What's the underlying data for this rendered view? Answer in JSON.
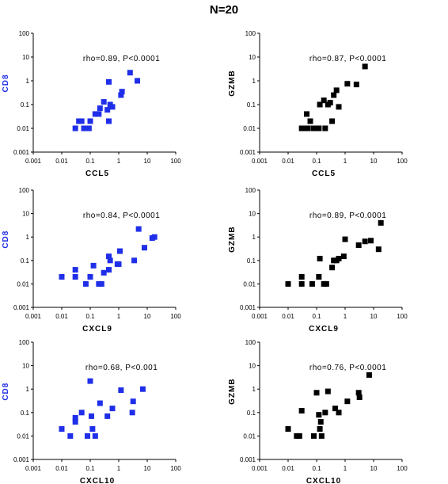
{
  "figure": {
    "title": "N=20"
  },
  "chart_data": [
    {
      "type": "scatter",
      "xlabel": "CCL5",
      "ylabel": "CD8",
      "annotation": "rho=0.89, P<0.0001",
      "x_scale": "log",
      "y_scale": "log",
      "xlim": [
        0.001,
        100
      ],
      "ylim": [
        0.001,
        100
      ],
      "x_ticks": [
        "0.001",
        "0.01",
        "0.1",
        "1",
        "10",
        "100"
      ],
      "y_ticks": [
        "0.001",
        "0.01",
        "0.1",
        "1",
        "10",
        "100"
      ],
      "marker_color": "#1f2ee8",
      "ylabel_color": "#1f2ee8",
      "points": [
        [
          0.03,
          0.01
        ],
        [
          0.04,
          0.02
        ],
        [
          0.05,
          0.02
        ],
        [
          0.06,
          0.01
        ],
        [
          0.09,
          0.01
        ],
        [
          0.1,
          0.02
        ],
        [
          0.15,
          0.04
        ],
        [
          0.2,
          0.04
        ],
        [
          0.22,
          0.07
        ],
        [
          0.3,
          0.13
        ],
        [
          0.4,
          0.06
        ],
        [
          0.45,
          0.02
        ],
        [
          0.5,
          0.1
        ],
        [
          0.6,
          0.08
        ],
        [
          0.45,
          0.9
        ],
        [
          1.2,
          0.25
        ],
        [
          1.3,
          0.35
        ],
        [
          2.5,
          2.2
        ],
        [
          4.5,
          1.0
        ]
      ]
    },
    {
      "type": "scatter",
      "xlabel": "CCL5",
      "ylabel": "GZMB",
      "annotation": "rho=0.87, P<0.0001",
      "x_scale": "log",
      "y_scale": "log",
      "xlim": [
        0.001,
        100
      ],
      "ylim": [
        0.001,
        100
      ],
      "x_ticks": [
        "0.001",
        "0.01",
        "0.1",
        "1",
        "10",
        "100"
      ],
      "y_ticks": [
        "0.001",
        "0.01",
        "0.1",
        "1",
        "10",
        "100"
      ],
      "marker_color": "#000000",
      "ylabel_color": "#000000",
      "points": [
        [
          0.03,
          0.01
        ],
        [
          0.04,
          0.01
        ],
        [
          0.045,
          0.04
        ],
        [
          0.05,
          0.01
        ],
        [
          0.06,
          0.02
        ],
        [
          0.08,
          0.01
        ],
        [
          0.12,
          0.01
        ],
        [
          0.13,
          0.1
        ],
        [
          0.18,
          0.15
        ],
        [
          0.2,
          0.01
        ],
        [
          0.25,
          0.1
        ],
        [
          0.3,
          0.12
        ],
        [
          0.35,
          0.02
        ],
        [
          0.4,
          0.25
        ],
        [
          0.5,
          0.4
        ],
        [
          0.6,
          0.08
        ],
        [
          1.2,
          0.75
        ],
        [
          2.5,
          0.7
        ],
        [
          5.0,
          4.0
        ]
      ]
    },
    {
      "type": "scatter",
      "xlabel": "CXCL9",
      "ylabel": "CD8",
      "annotation": "rho=0.84, P<0.0001",
      "x_scale": "log",
      "y_scale": "log",
      "xlim": [
        0.001,
        100
      ],
      "ylim": [
        0.001,
        100
      ],
      "x_ticks": [
        "0.001",
        "0.01",
        "0.1",
        "1",
        "10",
        "100"
      ],
      "y_ticks": [
        "0.001",
        "0.01",
        "0.1",
        "1",
        "10",
        "100"
      ],
      "marker_color": "#1f2ee8",
      "ylabel_color": "#1f2ee8",
      "points": [
        [
          0.01,
          0.02
        ],
        [
          0.03,
          0.02
        ],
        [
          0.03,
          0.04
        ],
        [
          0.07,
          0.01
        ],
        [
          0.1,
          0.02
        ],
        [
          0.13,
          0.06
        ],
        [
          0.2,
          0.01
        ],
        [
          0.25,
          0.01
        ],
        [
          0.3,
          0.03
        ],
        [
          0.45,
          0.04
        ],
        [
          0.45,
          0.15
        ],
        [
          0.5,
          0.1
        ],
        [
          0.9,
          0.07
        ],
        [
          1.0,
          0.07
        ],
        [
          1.1,
          0.25
        ],
        [
          3.5,
          0.1
        ],
        [
          5.0,
          2.2
        ],
        [
          8.0,
          0.35
        ],
        [
          15,
          0.9
        ],
        [
          18,
          1.0
        ]
      ]
    },
    {
      "type": "scatter",
      "xlabel": "CXCL9",
      "ylabel": "GZMB",
      "annotation": "rho=0.89, P<0.0001",
      "x_scale": "log",
      "y_scale": "log",
      "xlim": [
        0.001,
        100
      ],
      "ylim": [
        0.001,
        100
      ],
      "x_ticks": [
        "0.001",
        "0.01",
        "0.1",
        "1",
        "10",
        "100"
      ],
      "y_ticks": [
        "0.001",
        "0.01",
        "0.1",
        "1",
        "10",
        "100"
      ],
      "marker_color": "#000000",
      "ylabel_color": "#000000",
      "points": [
        [
          0.01,
          0.01
        ],
        [
          0.03,
          0.01
        ],
        [
          0.03,
          0.02
        ],
        [
          0.07,
          0.01
        ],
        [
          0.12,
          0.02
        ],
        [
          0.13,
          0.12
        ],
        [
          0.18,
          0.01
        ],
        [
          0.22,
          0.01
        ],
        [
          0.35,
          0.05
        ],
        [
          0.4,
          0.1
        ],
        [
          0.5,
          0.1
        ],
        [
          0.6,
          0.12
        ],
        [
          0.9,
          0.15
        ],
        [
          1.0,
          0.8
        ],
        [
          3.0,
          0.45
        ],
        [
          5.0,
          0.65
        ],
        [
          8.0,
          0.7
        ],
        [
          15,
          0.3
        ],
        [
          18,
          4.0
        ]
      ]
    },
    {
      "type": "scatter",
      "xlabel": "CXCL10",
      "ylabel": "CD8",
      "annotation": "rho=0.68, P<0.001",
      "x_scale": "log",
      "y_scale": "log",
      "xlim": [
        0.001,
        100
      ],
      "ylim": [
        0.001,
        100
      ],
      "x_ticks": [
        "0.001",
        "0.01",
        "0.1",
        "1",
        "10",
        "100"
      ],
      "y_ticks": [
        "0.001",
        "0.01",
        "0.1",
        "1",
        "10",
        "100"
      ],
      "marker_color": "#1f2ee8",
      "ylabel_color": "#1f2ee8",
      "points": [
        [
          0.01,
          0.02
        ],
        [
          0.02,
          0.01
        ],
        [
          0.03,
          0.04
        ],
        [
          0.03,
          0.06
        ],
        [
          0.05,
          0.1
        ],
        [
          0.08,
          0.01
        ],
        [
          0.1,
          2.2
        ],
        [
          0.11,
          0.07
        ],
        [
          0.12,
          0.02
        ],
        [
          0.15,
          0.01
        ],
        [
          0.22,
          0.25
        ],
        [
          0.4,
          0.07
        ],
        [
          0.6,
          0.15
        ],
        [
          1.2,
          0.9
        ],
        [
          3.0,
          0.1
        ],
        [
          3.2,
          0.3
        ],
        [
          7.0,
          1.0
        ]
      ]
    },
    {
      "type": "scatter",
      "xlabel": "CXCL10",
      "ylabel": "GZMB",
      "annotation": "rho=0.76, P<0.0001",
      "x_scale": "log",
      "y_scale": "log",
      "xlim": [
        0.001,
        100
      ],
      "ylim": [
        0.001,
        100
      ],
      "x_ticks": [
        "0.001",
        "0.01",
        "0.1",
        "1",
        "10",
        "100"
      ],
      "y_ticks": [
        "0.001",
        "0.01",
        "0.1",
        "1",
        "10",
        "100"
      ],
      "marker_color": "#000000",
      "ylabel_color": "#000000",
      "points": [
        [
          0.01,
          0.02
        ],
        [
          0.02,
          0.01
        ],
        [
          0.025,
          0.01
        ],
        [
          0.03,
          0.12
        ],
        [
          0.08,
          0.01
        ],
        [
          0.1,
          0.7
        ],
        [
          0.12,
          0.08
        ],
        [
          0.13,
          0.02
        ],
        [
          0.14,
          0.04
        ],
        [
          0.15,
          0.01
        ],
        [
          0.2,
          0.1
        ],
        [
          0.25,
          0.8
        ],
        [
          0.45,
          0.15
        ],
        [
          0.6,
          0.1
        ],
        [
          1.2,
          0.3
        ],
        [
          3.0,
          0.7
        ],
        [
          3.2,
          0.45
        ],
        [
          7.0,
          4.0
        ]
      ]
    }
  ]
}
